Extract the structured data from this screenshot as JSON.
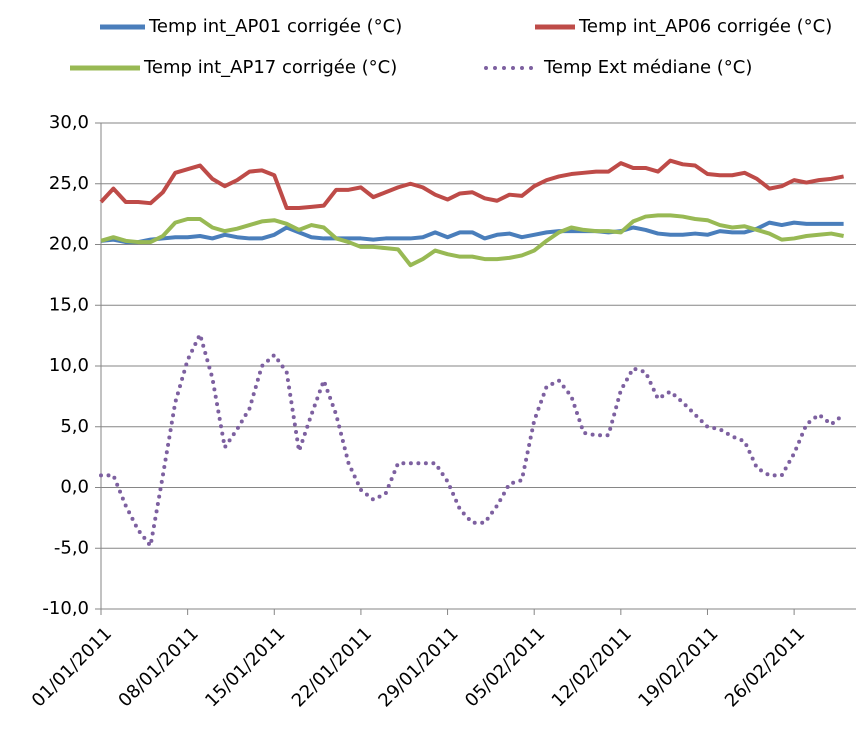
{
  "chart_data": {
    "type": "line",
    "x": [
      "2011-01-01",
      "2011-01-02",
      "2011-01-03",
      "2011-01-04",
      "2011-01-05",
      "2011-01-06",
      "2011-01-07",
      "2011-01-08",
      "2011-01-09",
      "2011-01-10",
      "2011-01-11",
      "2011-01-12",
      "2011-01-13",
      "2011-01-14",
      "2011-01-15",
      "2011-01-16",
      "2011-01-17",
      "2011-01-18",
      "2011-01-19",
      "2011-01-20",
      "2011-01-21",
      "2011-01-22",
      "2011-01-23",
      "2011-01-24",
      "2011-01-25",
      "2011-01-26",
      "2011-01-27",
      "2011-01-28",
      "2011-01-29",
      "2011-01-30",
      "2011-01-31",
      "2011-02-01",
      "2011-02-02",
      "2011-02-03",
      "2011-02-04",
      "2011-02-05",
      "2011-02-06",
      "2011-02-07",
      "2011-02-08",
      "2011-02-09",
      "2011-02-10",
      "2011-02-11",
      "2011-02-12",
      "2011-02-13",
      "2011-02-14",
      "2011-02-15",
      "2011-02-16",
      "2011-02-17",
      "2011-02-18",
      "2011-02-19",
      "2011-02-20",
      "2011-02-21",
      "2011-02-22",
      "2011-02-23",
      "2011-02-24",
      "2011-02-25",
      "2011-02-26",
      "2011-02-27",
      "2011-02-28",
      "2011-03-01",
      "2011-03-02"
    ],
    "series": [
      {
        "name": "Temp int_AP01 corrigée (°C)",
        "color": "#4a7ebb",
        "style": "solid",
        "values": [
          20.3,
          20.4,
          20.2,
          20.2,
          20.4,
          20.5,
          20.6,
          20.6,
          20.7,
          20.5,
          20.8,
          20.6,
          20.5,
          20.5,
          20.8,
          21.4,
          21.0,
          20.6,
          20.5,
          20.5,
          20.5,
          20.5,
          20.4,
          20.5,
          20.5,
          20.5,
          20.6,
          21.0,
          20.6,
          21.0,
          21.0,
          20.5,
          20.8,
          20.9,
          20.6,
          20.8,
          21.0,
          21.1,
          21.1,
          21.1,
          21.1,
          21.0,
          21.1,
          21.4,
          21.2,
          20.9,
          20.8,
          20.8,
          20.9,
          20.8,
          21.1,
          21.0,
          21.0,
          21.3,
          21.8,
          21.6,
          21.8,
          21.7,
          21.7,
          21.7,
          21.7
        ]
      },
      {
        "name": "Temp int_AP06 corrigée (°C)",
        "color": "#be4b48",
        "style": "solid",
        "values": [
          23.5,
          24.6,
          23.5,
          23.5,
          23.4,
          24.3,
          25.9,
          26.2,
          26.5,
          25.4,
          24.8,
          25.3,
          26.0,
          26.1,
          25.7,
          23.0,
          23.0,
          23.1,
          23.2,
          24.5,
          24.5,
          24.7,
          23.9,
          24.3,
          24.7,
          25.0,
          24.7,
          24.1,
          23.7,
          24.2,
          24.3,
          23.8,
          23.6,
          24.1,
          24.0,
          24.8,
          25.3,
          25.6,
          25.8,
          25.9,
          26.0,
          26.0,
          26.7,
          26.3,
          26.3,
          26.0,
          26.9,
          26.6,
          26.5,
          25.8,
          25.7,
          25.7,
          25.9,
          25.4,
          24.6,
          24.8,
          25.3,
          25.1,
          25.3,
          25.4,
          25.6
        ]
      },
      {
        "name": "Temp int_AP17 corrigée (°C)",
        "color": "#98b954",
        "style": "solid",
        "values": [
          20.3,
          20.6,
          20.3,
          20.2,
          20.2,
          20.7,
          21.8,
          22.1,
          22.1,
          21.4,
          21.1,
          21.3,
          21.6,
          21.9,
          22.0,
          21.7,
          21.2,
          21.6,
          21.4,
          20.5,
          20.2,
          19.8,
          19.8,
          19.7,
          19.6,
          18.3,
          18.8,
          19.5,
          19.2,
          19.0,
          19.0,
          18.8,
          18.8,
          18.9,
          19.1,
          19.5,
          20.3,
          21.0,
          21.4,
          21.2,
          21.1,
          21.1,
          21.0,
          21.9,
          22.3,
          22.4,
          22.4,
          22.3,
          22.1,
          22.0,
          21.6,
          21.4,
          21.5,
          21.2,
          20.9,
          20.4,
          20.5,
          20.7,
          20.8,
          20.9,
          20.7
        ]
      },
      {
        "name": "Temp Ext médiane (°C)",
        "color": "#7d60a0",
        "style": "dotted",
        "values": [
          1.0,
          1.0,
          -1.5,
          -3.5,
          -4.8,
          1.0,
          7.0,
          10.5,
          12.6,
          9.0,
          3.3,
          4.8,
          6.5,
          10.0,
          10.9,
          9.5,
          3.0,
          6.0,
          8.8,
          6.0,
          2.0,
          -0.2,
          -1.0,
          -0.5,
          2.0,
          2.0,
          2.0,
          2.0,
          0.5,
          -1.8,
          -2.9,
          -2.9,
          -1.5,
          0.3,
          0.6,
          5.5,
          8.3,
          8.8,
          7.5,
          4.5,
          4.3,
          4.3,
          8.0,
          9.8,
          9.5,
          7.3,
          7.9,
          7.0,
          6.0,
          5.0,
          4.8,
          4.2,
          3.8,
          1.6,
          1.0,
          1.0,
          2.8,
          5.2,
          6.0,
          5.2,
          6.0
        ]
      }
    ],
    "xlim": [
      "2011-01-01",
      "2011-03-03"
    ],
    "xticks": [
      {
        "value": "2011-01-01",
        "label": "01/01/2011"
      },
      {
        "value": "2011-01-08",
        "label": "08/01/2011"
      },
      {
        "value": "2011-01-15",
        "label": "15/01/2011"
      },
      {
        "value": "2011-01-22",
        "label": "22/01/2011"
      },
      {
        "value": "2011-01-29",
        "label": "29/01/2011"
      },
      {
        "value": "2011-02-05",
        "label": "05/02/2011"
      },
      {
        "value": "2011-02-12",
        "label": "12/02/2011"
      },
      {
        "value": "2011-02-19",
        "label": "19/02/2011"
      },
      {
        "value": "2011-02-26",
        "label": "26/02/2011"
      }
    ],
    "ylim": [
      -10,
      30
    ],
    "yticks": [
      {
        "value": -10,
        "label": "-10,0"
      },
      {
        "value": -5,
        "label": "-5,0"
      },
      {
        "value": 0,
        "label": "0,0"
      },
      {
        "value": 5,
        "label": "5,0"
      },
      {
        "value": 10,
        "label": "10,0"
      },
      {
        "value": 15,
        "label": "15,0"
      },
      {
        "value": 20,
        "label": "20,0"
      },
      {
        "value": 25,
        "label": "25,0"
      },
      {
        "value": 30,
        "label": "30,0"
      }
    ],
    "grid": true,
    "legend": "top"
  }
}
